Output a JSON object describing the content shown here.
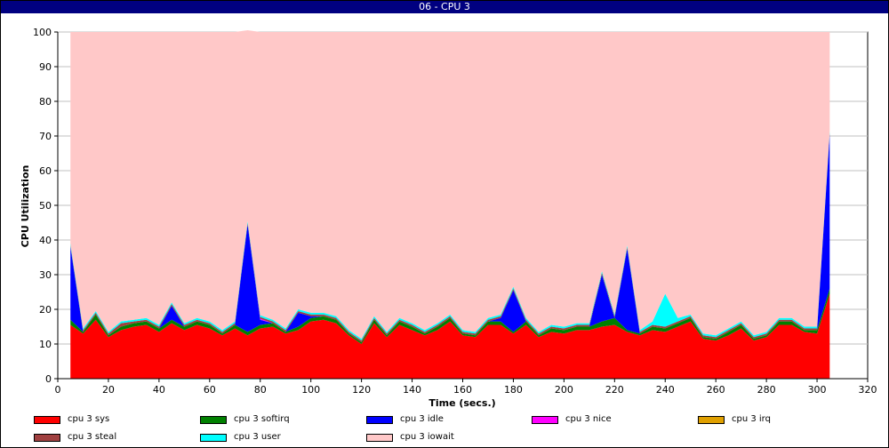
{
  "window": {
    "title": "06  -  CPU 3"
  },
  "chart_data": {
    "type": "area",
    "stacked": true,
    "title": "06  -  CPU 3",
    "xlabel": "Time (secs.)",
    "ylabel": "CPU Utilization",
    "xlim": [
      0,
      320
    ],
    "ylim": [
      0,
      100
    ],
    "x_ticks": [
      0,
      20,
      40,
      60,
      80,
      100,
      120,
      140,
      160,
      180,
      200,
      220,
      240,
      260,
      280,
      300,
      320
    ],
    "y_ticks": [
      0,
      10,
      20,
      30,
      40,
      50,
      60,
      70,
      80,
      90,
      100
    ],
    "grid": true,
    "legend_position": "bottom",
    "x": [
      5,
      10,
      15,
      20,
      25,
      30,
      35,
      40,
      45,
      50,
      55,
      60,
      65,
      70,
      75,
      80,
      85,
      90,
      95,
      100,
      105,
      110,
      115,
      120,
      125,
      130,
      135,
      140,
      145,
      150,
      155,
      160,
      165,
      170,
      175,
      180,
      185,
      190,
      195,
      200,
      205,
      210,
      215,
      220,
      225,
      230,
      235,
      240,
      245,
      250,
      255,
      260,
      265,
      270,
      275,
      280,
      285,
      290,
      295,
      300,
      305
    ],
    "series": [
      {
        "name": "cpu 3 sys",
        "color": "#ff0000",
        "values": [
          15.5,
          13.0,
          17.0,
          12.0,
          14.0,
          15.0,
          15.5,
          13.5,
          16.0,
          14.0,
          15.5,
          14.5,
          12.5,
          14.5,
          12.5,
          14.5,
          15.0,
          13.0,
          14.0,
          16.5,
          17.0,
          16.0,
          12.5,
          10.0,
          16.0,
          12.0,
          15.5,
          14.0,
          12.5,
          14.0,
          16.5,
          12.5,
          12.0,
          15.5,
          15.5,
          13.0,
          15.5,
          12.0,
          13.5,
          13.0,
          14.0,
          14.0,
          15.0,
          15.5,
          13.5,
          12.5,
          14.0,
          13.5,
          15.0,
          16.5,
          11.5,
          11.0,
          12.5,
          14.5,
          11.0,
          12.0,
          15.5,
          15.5,
          13.5,
          13.0,
          24.5
        ]
      },
      {
        "name": "cpu 3 softirq",
        "color": "#008000",
        "values": [
          1.5,
          0.5,
          1.5,
          0.5,
          1.0,
          1.0,
          1.0,
          1.0,
          1.0,
          1.0,
          1.0,
          1.0,
          0.5,
          1.0,
          1.0,
          1.0,
          1.0,
          0.5,
          1.0,
          1.0,
          1.0,
          1.0,
          0.5,
          0.5,
          1.0,
          0.5,
          1.0,
          1.0,
          0.5,
          1.0,
          1.0,
          0.5,
          0.5,
          1.0,
          1.0,
          0.5,
          1.0,
          0.5,
          1.0,
          1.0,
          1.0,
          1.0,
          1.5,
          2.0,
          0.5,
          0.5,
          1.0,
          1.0,
          1.0,
          1.0,
          0.5,
          0.5,
          1.0,
          1.0,
          0.5,
          0.5,
          1.0,
          1.0,
          0.5,
          1.0,
          1.5
        ]
      },
      {
        "name": "cpu 3 idle",
        "color": "#0000ff",
        "values": [
          21.0,
          0.0,
          0.0,
          0.0,
          0.0,
          0.0,
          0.0,
          0.0,
          4.0,
          0.0,
          0.0,
          0.0,
          0.0,
          0.0,
          31.0,
          1.5,
          0.0,
          0.0,
          4.0,
          0.5,
          0.0,
          0.0,
          0.0,
          0.0,
          0.0,
          0.0,
          0.0,
          0.0,
          0.0,
          0.0,
          0.0,
          0.0,
          0.0,
          0.0,
          1.0,
          12.0,
          0.0,
          0.0,
          0.0,
          0.0,
          0.0,
          0.0,
          13.5,
          0.0,
          23.5,
          0.0,
          0.0,
          0.0,
          0.0,
          0.0,
          0.0,
          0.0,
          0.0,
          0.0,
          0.0,
          0.0,
          0.0,
          0.0,
          0.0,
          0.0,
          44.5
        ]
      },
      {
        "name": "cpu 3 nice",
        "color": "#ff00ff",
        "values": [
          0,
          0,
          0,
          0,
          0,
          0,
          0,
          0,
          0,
          0,
          0,
          0,
          0,
          0,
          0,
          0.3,
          0,
          0,
          0,
          0,
          0,
          0,
          0,
          0,
          0,
          0,
          0,
          0,
          0,
          0,
          0,
          0,
          0,
          0,
          0,
          0,
          0,
          0,
          0,
          0,
          0,
          0,
          0,
          0,
          0,
          0,
          0,
          0,
          0,
          0,
          0,
          0,
          0,
          0,
          0,
          0,
          0,
          0,
          0,
          0,
          0
        ]
      },
      {
        "name": "cpu 3 irq",
        "color": "#e0a000",
        "values": [
          0,
          0,
          0,
          0,
          0,
          0,
          0,
          0,
          0,
          0,
          0,
          0,
          0,
          0,
          0,
          0,
          0,
          0,
          0,
          0,
          0,
          0,
          0,
          0,
          0,
          0,
          0,
          0,
          0,
          0,
          0,
          0,
          0,
          0,
          0,
          0,
          0,
          0,
          0,
          0,
          0,
          0,
          0,
          0,
          0,
          0,
          0,
          0,
          0,
          0,
          0,
          0,
          0,
          0,
          0,
          0,
          0,
          0,
          0,
          0,
          0
        ]
      },
      {
        "name": "cpu 3 steal",
        "color": "#a04040",
        "values": [
          0.5,
          0.5,
          0.5,
          0.5,
          1.0,
          0.5,
          0.5,
          0.5,
          0.5,
          0.5,
          0.5,
          0.5,
          0.5,
          0.5,
          0.5,
          0.5,
          0.5,
          0.5,
          0.5,
          0.5,
          0.5,
          0.5,
          0.5,
          0.5,
          0.5,
          0.5,
          0.5,
          0.5,
          0.5,
          0.5,
          0.5,
          0.5,
          0.5,
          0.5,
          0.5,
          0.5,
          0.5,
          0.5,
          0.5,
          0.5,
          0.5,
          0.5,
          0.5,
          0.5,
          0.5,
          0.5,
          0.5,
          0.5,
          0.5,
          0.5,
          0.5,
          0.5,
          0.5,
          0.5,
          0.5,
          0.5,
          0.5,
          0.5,
          0.5,
          0.5,
          0.5
        ]
      },
      {
        "name": "cpu 3 user",
        "color": "#00ffff",
        "values": [
          0.5,
          0.5,
          0.5,
          0.5,
          0.5,
          0.5,
          0.5,
          0.5,
          0.5,
          0.5,
          0.5,
          0.5,
          0.5,
          0.5,
          0.5,
          0.5,
          0.5,
          0.5,
          0.5,
          0.5,
          0.5,
          0.5,
          0.5,
          0.5,
          0.5,
          0.5,
          0.5,
          0.5,
          0.5,
          0.5,
          0.5,
          0.5,
          0.5,
          0.5,
          0.5,
          0.5,
          0.5,
          0.5,
          0.5,
          0.5,
          0.5,
          0.5,
          0.5,
          0.5,
          0.5,
          0.5,
          1.0,
          9.5,
          1.0,
          0.5,
          0.5,
          0.5,
          0.5,
          0.5,
          0.5,
          0.5,
          0.5,
          0.5,
          0.5,
          0.5,
          0.5
        ]
      },
      {
        "name": "cpu 3 iowait",
        "color": "#ffc8c8",
        "values": [
          61.0,
          85.5,
          80.5,
          86.5,
          83.5,
          83.0,
          82.5,
          84.5,
          78.0,
          84.0,
          82.5,
          83.5,
          86.0,
          83.5,
          55.0,
          81.7,
          83.0,
          85.5,
          80.0,
          81.0,
          81.0,
          82.0,
          86.0,
          88.5,
          82.0,
          86.5,
          82.5,
          84.0,
          86.0,
          84.0,
          81.5,
          86.0,
          86.5,
          82.5,
          81.5,
          73.5,
          82.5,
          86.5,
          84.5,
          85.0,
          84.0,
          84.0,
          69.0,
          81.5,
          61.5,
          86.0,
          83.5,
          75.5,
          82.5,
          81.5,
          87.0,
          87.5,
          85.5,
          83.5,
          87.5,
          86.5,
          82.5,
          82.5,
          85.0,
          85.0,
          28.5
        ]
      }
    ]
  }
}
